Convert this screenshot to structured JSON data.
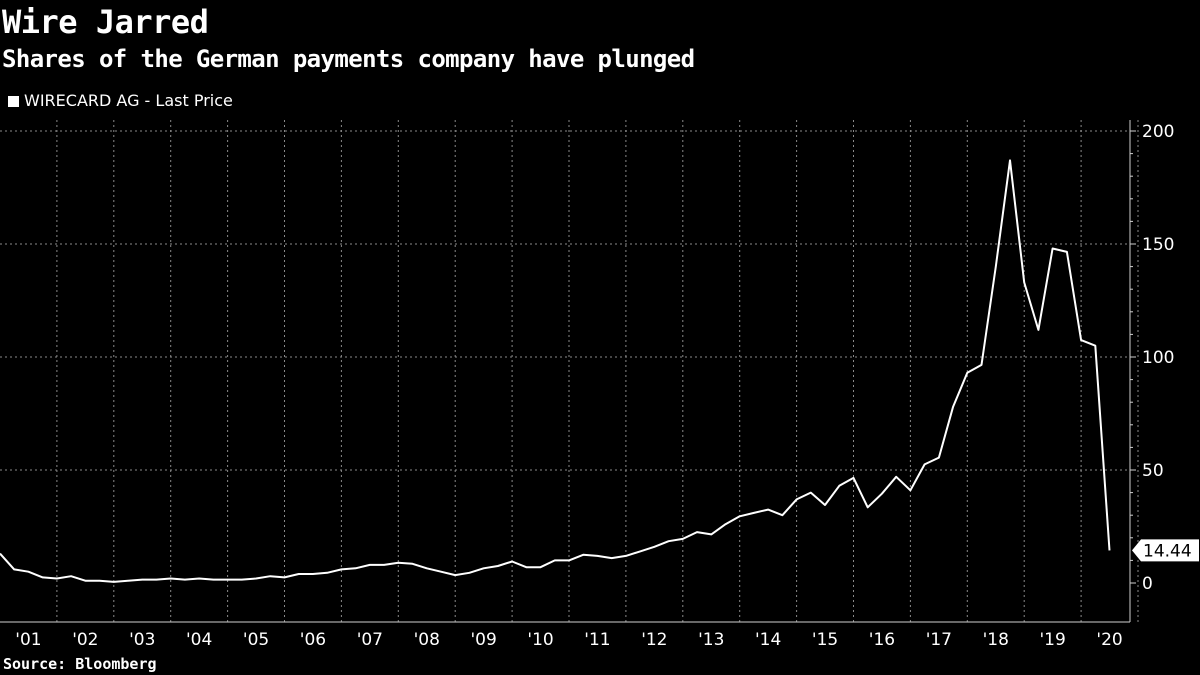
{
  "chart_data": {
    "type": "line",
    "title": "Wire Jarred",
    "subtitle": "Shares of the German payments company have plunged",
    "legend": {
      "placement": "top-left",
      "color": "#ffffff"
    },
    "source": "Source: Bloomberg",
    "grid": true,
    "ylim": [
      0,
      200
    ],
    "y_ticks": [
      0,
      50,
      100,
      150,
      200
    ],
    "x_ticks": [
      "'01",
      "'02",
      "'03",
      "'04",
      "'05",
      "'06",
      "'07",
      "'08",
      "'09",
      "'10",
      "'11",
      "'12",
      "'13",
      "'14",
      "'15",
      "'16",
      "'17",
      "'18",
      "'19",
      "'20"
    ],
    "last_value_label": "14.44",
    "series": [
      {
        "name": "WIRECARD AG - Last Price",
        "color": "#ffffff",
        "points": [
          [
            "Q4 2000",
            13
          ],
          [
            "Q1 2001",
            6
          ],
          [
            "Q2 2001",
            5
          ],
          [
            "Q3 2001",
            2.5
          ],
          [
            "Q4 2001",
            2
          ],
          [
            "Q1 2002",
            3
          ],
          [
            "Q2 2002",
            1
          ],
          [
            "Q3 2002",
            1
          ],
          [
            "Q4 2002",
            0.5
          ],
          [
            "Q1 2003",
            1
          ],
          [
            "Q2 2003",
            1.5
          ],
          [
            "Q3 2003",
            1.5
          ],
          [
            "Q4 2003",
            2
          ],
          [
            "Q1 2004",
            1.5
          ],
          [
            "Q2 2004",
            2
          ],
          [
            "Q3 2004",
            1.5
          ],
          [
            "Q4 2004",
            1.5
          ],
          [
            "Q1 2005",
            1.5
          ],
          [
            "Q2 2005",
            2
          ],
          [
            "Q3 2005",
            3
          ],
          [
            "Q4 2005",
            2.5
          ],
          [
            "Q1 2006",
            4
          ],
          [
            "Q2 2006",
            4
          ],
          [
            "Q3 2006",
            4.5
          ],
          [
            "Q4 2006",
            6
          ],
          [
            "Q1 2007",
            6.5
          ],
          [
            "Q2 2007",
            8
          ],
          [
            "Q3 2007",
            8
          ],
          [
            "Q4 2007",
            9
          ],
          [
            "Q1 2008",
            8.5
          ],
          [
            "Q2 2008",
            6.5
          ],
          [
            "Q3 2008",
            5
          ],
          [
            "Q4 2008",
            3.5
          ],
          [
            "Q1 2009",
            4.5
          ],
          [
            "Q2 2009",
            6.5
          ],
          [
            "Q3 2009",
            7.5
          ],
          [
            "Q4 2009",
            9.5
          ],
          [
            "Q1 2010",
            7
          ],
          [
            "Q2 2010",
            7
          ],
          [
            "Q3 2010",
            10
          ],
          [
            "Q4 2010",
            10
          ],
          [
            "Q1 2011",
            12.5
          ],
          [
            "Q2 2011",
            12
          ],
          [
            "Q3 2011",
            11
          ],
          [
            "Q4 2011",
            12
          ],
          [
            "Q1 2012",
            14
          ],
          [
            "Q2 2012",
            16
          ],
          [
            "Q3 2012",
            18.5
          ],
          [
            "Q4 2012",
            19.5
          ],
          [
            "Q1 2013",
            22.5
          ],
          [
            "Q2 2013",
            21.5
          ],
          [
            "Q3 2013",
            26
          ],
          [
            "Q4 2013",
            29.5
          ],
          [
            "Q1 2014",
            31
          ],
          [
            "Q2 2014",
            32.5
          ],
          [
            "Q3 2014",
            30
          ],
          [
            "Q4 2014",
            37
          ],
          [
            "Q1 2015",
            40
          ],
          [
            "Q2 2015",
            34.5
          ],
          [
            "Q3 2015",
            43
          ],
          [
            "Q4 2015",
            46.5
          ],
          [
            "Q1 2016",
            33.5
          ],
          [
            "Q2 2016",
            39.5
          ],
          [
            "Q3 2016",
            47
          ],
          [
            "Q4 2016",
            41
          ],
          [
            "Q1 2017",
            52.5
          ],
          [
            "Q2 2017",
            55.5
          ],
          [
            "Q3 2017",
            78
          ],
          [
            "Q4 2017",
            93
          ],
          [
            "Q1 2018",
            96.5
          ],
          [
            "Q2 2018",
            140
          ],
          [
            "Q3 2018",
            187
          ],
          [
            "Q4 2018",
            133
          ],
          [
            "Q1 2019",
            112
          ],
          [
            "Q2 2019",
            148
          ],
          [
            "Q3 2019",
            146.5
          ],
          [
            "Q4 2019",
            107.5
          ],
          [
            "Q1 2020",
            105
          ],
          [
            "Q2 2020",
            14.44
          ]
        ]
      }
    ]
  }
}
